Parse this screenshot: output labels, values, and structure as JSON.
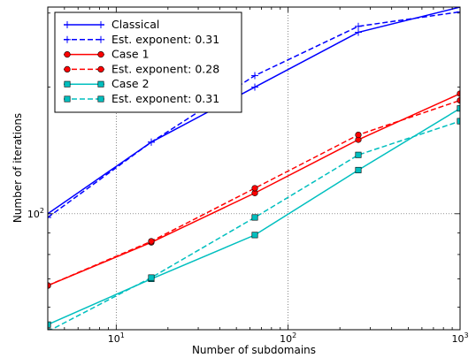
{
  "chart_data": {
    "type": "line",
    "xlabel": "Number of subdomains",
    "ylabel": "Number of iterations",
    "xscale": "log",
    "yscale": "log",
    "xlim": [
      4,
      1000
    ],
    "ylim": [
      53,
      310
    ],
    "x_ticks": [
      {
        "value": 10,
        "base": "10",
        "exp": "1"
      },
      {
        "value": 100,
        "base": "10",
        "exp": "2"
      },
      {
        "value": 1000,
        "base": "10",
        "exp": "3"
      }
    ],
    "y_ticks": [
      {
        "value": 100,
        "base": "10",
        "exp": "2"
      }
    ],
    "grid": true,
    "legend_position": "top-left",
    "series": [
      {
        "name": "Classical",
        "color": "#0000ff",
        "style": "solid",
        "marker": "plus",
        "x": [
          4,
          16,
          64,
          256,
          1000
        ],
        "y": [
          100,
          148,
          200,
          270,
          310
        ]
      },
      {
        "name": "Est. exponent: 0.31",
        "color": "#0000ff",
        "style": "dashed",
        "marker": "plus",
        "x": [
          4,
          16,
          64,
          256,
          1000
        ],
        "y": [
          98,
          148,
          213,
          279,
          302
        ]
      },
      {
        "name": "Case 1",
        "color": "#ff0000",
        "style": "solid",
        "marker": "circle",
        "x": [
          4,
          16,
          64,
          256,
          1000
        ],
        "y": [
          67.5,
          85.5,
          112,
          150,
          193
        ]
      },
      {
        "name": "Est. exponent: 0.28",
        "color": "#ff0000",
        "style": "dashed",
        "marker": "circle",
        "x": [
          4,
          16,
          64,
          256,
          1000
        ],
        "y": [
          67.5,
          86,
          115,
          154,
          186
        ]
      },
      {
        "name": "Case 2",
        "color": "#00bfbf",
        "style": "solid",
        "marker": "square",
        "x": [
          4,
          16,
          64,
          256,
          1000
        ],
        "y": [
          54.5,
          70,
          89,
          127,
          178
        ]
      },
      {
        "name": "Est. exponent: 0.31",
        "color": "#00bfbf",
        "style": "dashed",
        "marker": "square",
        "x": [
          4,
          16,
          64,
          256,
          1000
        ],
        "y": [
          52.5,
          70.5,
          98,
          138,
          166
        ]
      }
    ]
  }
}
